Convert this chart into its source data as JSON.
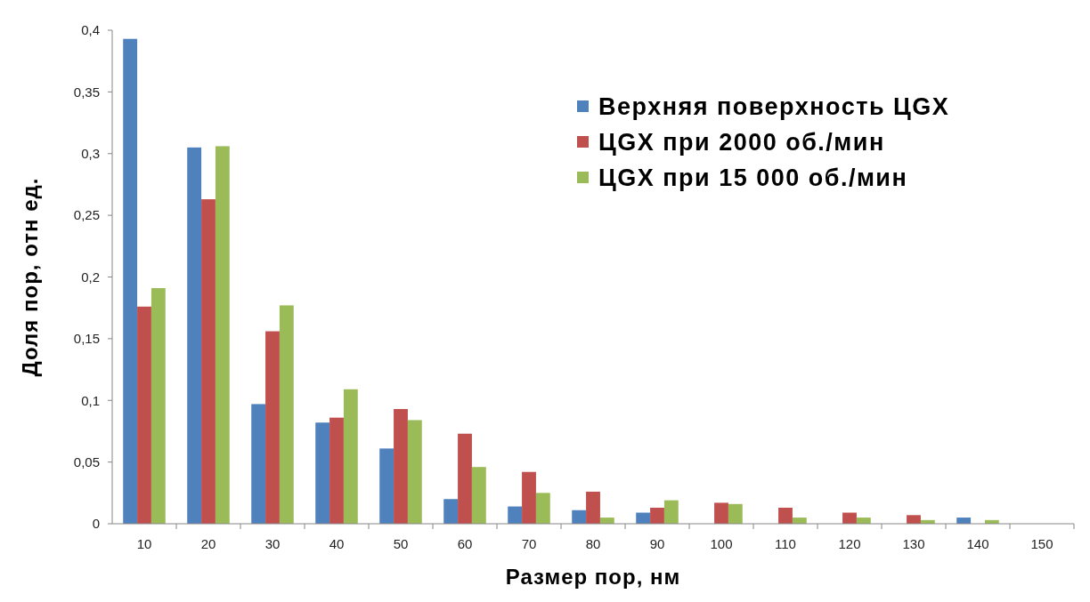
{
  "chart_data": {
    "type": "bar",
    "xlabel": "Размер пор, нм",
    "ylabel": "Доля пор, отн ед.",
    "categories": [
      "10",
      "20",
      "30",
      "40",
      "50",
      "60",
      "70",
      "80",
      "90",
      "100",
      "110",
      "120",
      "130",
      "140",
      "150"
    ],
    "series": [
      {
        "name": "Верхняя поверхность ЦGX",
        "color": "#4f81bd",
        "values": [
          0.393,
          0.305,
          0.097,
          0.082,
          0.061,
          0.02,
          0.014,
          0.011,
          0.009,
          0,
          0,
          0,
          0,
          0.005,
          0
        ]
      },
      {
        "name": "ЦGX при 2000 об./мин",
        "color": "#c0504d",
        "values": [
          0.176,
          0.263,
          0.156,
          0.086,
          0.093,
          0.073,
          0.042,
          0.026,
          0.013,
          0.017,
          0.013,
          0.009,
          0.007,
          0,
          0
        ]
      },
      {
        "name": "ЦGX при 15 000 об./мин",
        "color": "#9bbb59",
        "values": [
          0.191,
          0.306,
          0.177,
          0.109,
          0.084,
          0.046,
          0.025,
          0.005,
          0.019,
          0.016,
          0.005,
          0.005,
          0.003,
          0.003,
          0
        ]
      }
    ],
    "ylim": [
      0,
      0.4
    ],
    "yticks": [
      0,
      {
        "value": 0.05,
        "label": "0,05"
      },
      {
        "value": 0.1,
        "label": "0,1"
      },
      {
        "value": 0.15,
        "label": "0,15"
      },
      {
        "value": 0.2,
        "label": "0,2"
      },
      {
        "value": 0.25,
        "label": "0,25"
      },
      {
        "value": 0.3,
        "label": "0,3"
      },
      {
        "value": 0.35,
        "label": "0,35"
      },
      {
        "value": 0.4,
        "label": "0,4"
      }
    ],
    "grid": false,
    "legend": "top right"
  }
}
